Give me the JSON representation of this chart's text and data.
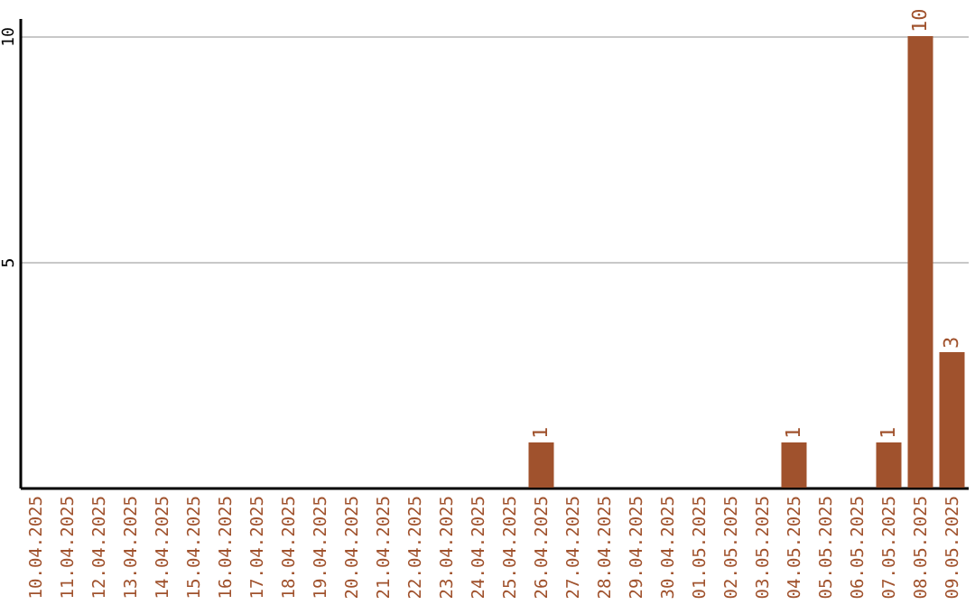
{
  "chart_data": {
    "type": "bar",
    "categories": [
      "10.04.2025",
      "11.04.2025",
      "12.04.2025",
      "13.04.2025",
      "14.04.2025",
      "15.04.2025",
      "16.04.2025",
      "17.04.2025",
      "18.04.2025",
      "19.04.2025",
      "20.04.2025",
      "21.04.2025",
      "22.04.2025",
      "23.04.2025",
      "24.04.2025",
      "25.04.2025",
      "26.04.2025",
      "27.04.2025",
      "28.04.2025",
      "29.04.2025",
      "30.04.2025",
      "01.05.2025",
      "02.05.2025",
      "03.05.2025",
      "04.05.2025",
      "05.05.2025",
      "06.05.2025",
      "07.05.2025",
      "08.05.2025",
      "09.05.2025"
    ],
    "values": [
      0,
      0,
      0,
      0,
      0,
      0,
      0,
      0,
      0,
      0,
      0,
      0,
      0,
      0,
      0,
      0,
      1,
      0,
      0,
      0,
      0,
      0,
      0,
      0,
      1,
      0,
      0,
      1,
      10,
      3
    ],
    "value_labels": [
      null,
      null,
      null,
      null,
      null,
      null,
      null,
      null,
      null,
      null,
      null,
      null,
      null,
      null,
      null,
      null,
      "1",
      null,
      null,
      null,
      null,
      null,
      null,
      null,
      "1",
      null,
      null,
      "1",
      "10",
      "3"
    ],
    "color": "#a0522d",
    "ylim": [
      0,
      10.4
    ],
    "yticks": [
      5,
      10
    ],
    "grid": true
  }
}
